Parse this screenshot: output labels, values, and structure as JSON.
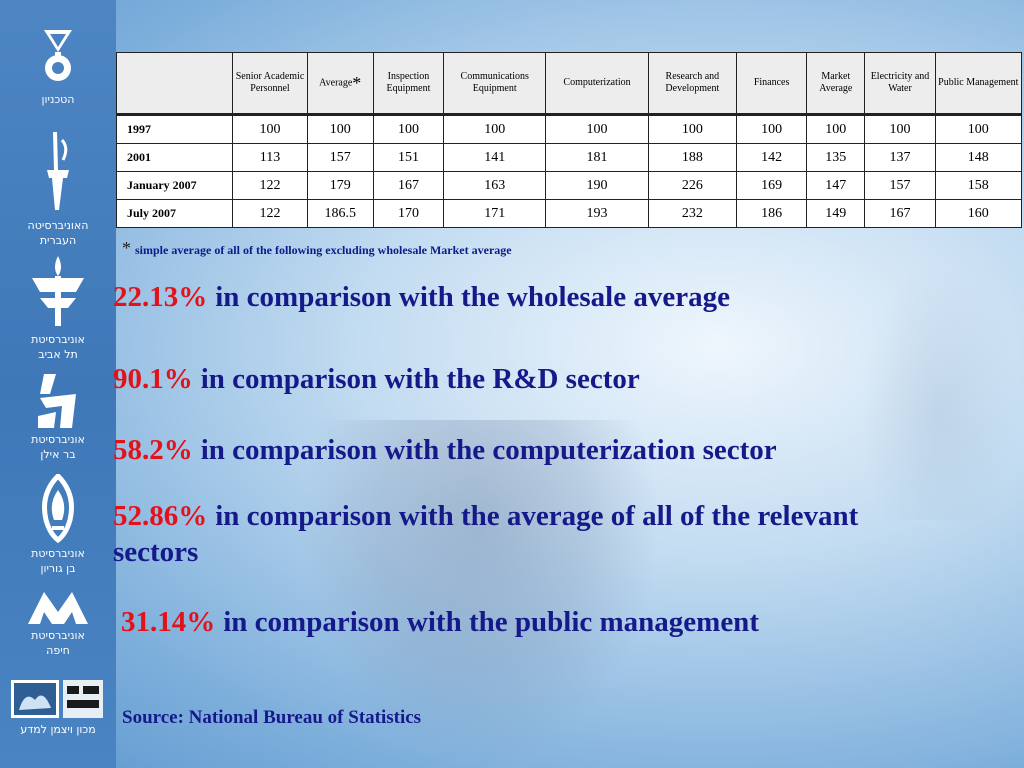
{
  "sidebar": {
    "logos": [
      {
        "icon": "technion-logo-icon",
        "caption": [
          "הטכניון"
        ]
      },
      {
        "icon": "hebrew-university-logo-icon",
        "caption": [
          "האוניברסיטה",
          "העברית"
        ]
      },
      {
        "icon": "tel-aviv-university-logo-icon",
        "caption": [
          "אוניברסיטת",
          "תל אביב"
        ]
      },
      {
        "icon": "bar-ilan-university-logo-icon",
        "caption": [
          "אוניברסיטת",
          "בר אילן"
        ]
      },
      {
        "icon": "ben-gurion-university-logo-icon",
        "caption": [
          "אוניברסיטת",
          "בן גוריון"
        ]
      },
      {
        "icon": "haifa-university-logo-icon",
        "caption": [
          "אוניברסיטת",
          "חיפה"
        ]
      },
      {
        "icon": "weizmann-institute-logo-icon",
        "caption": [
          "מכון ויצמן למדע"
        ]
      }
    ]
  },
  "table": {
    "headers": [
      "",
      "Senior Academic Personnel",
      "Average",
      "Inspection Equipment",
      "Communications Equipment",
      "Computerization",
      "Research and Development",
      "Finances",
      "Market Average",
      "Electricity and Water",
      "Public Management"
    ],
    "average_marker": "*",
    "rows": [
      {
        "label": "1997",
        "values": [
          "100",
          "100",
          "100",
          "100",
          "100",
          "100",
          "100",
          "100",
          "100",
          "100"
        ]
      },
      {
        "label": "2001",
        "values": [
          "113",
          "157",
          "151",
          "141",
          "181",
          "188",
          "142",
          "135",
          "137",
          "148"
        ]
      },
      {
        "label": "January 2007",
        "values": [
          "122",
          "179",
          "167",
          "163",
          "190",
          "226",
          "169",
          "147",
          "157",
          "158"
        ]
      },
      {
        "label": "July 2007",
        "values": [
          "122",
          "186.5",
          "170",
          "171",
          "193",
          "232",
          "186",
          "149",
          "167",
          "160"
        ]
      }
    ]
  },
  "footnote": {
    "marker": "*",
    "text": "simple average of all of the following excluding wholesale Market average"
  },
  "statements": [
    {
      "pct": "22.13%",
      "text": "in comparison with the wholesale average"
    },
    {
      "pct": "90.1%",
      "text": "in comparison with the R&D sector"
    },
    {
      "pct": "58.2%",
      "text": "in comparison with the computerization sector"
    },
    {
      "pct": "52.86%",
      "text": "in comparison with the average of all of the relevant sectors"
    },
    {
      "pct": "31.14%",
      "text": "in comparison with the public management"
    }
  ],
  "source": "Source: National Bureau of Statistics",
  "colors": {
    "highlight": "#e3121a",
    "text": "#16198a",
    "sidebar": "#4a82c0"
  }
}
